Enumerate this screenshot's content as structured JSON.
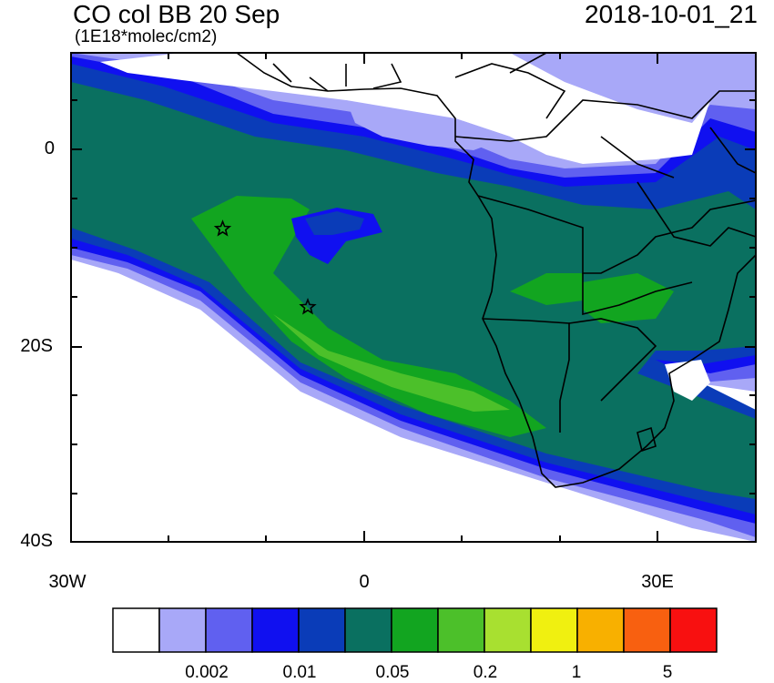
{
  "title": "CO col BB 20 Sep",
  "units": "(1E18*molec/cm2)",
  "timestamp": "2018-10-01_21",
  "axes": {
    "lat_labels": [
      "0",
      "20S",
      "40S"
    ],
    "lon_labels": [
      "30W",
      "0",
      "30E"
    ]
  },
  "colorbar": {
    "colors": [
      "#ffffff",
      "#a8a8f8",
      "#6060f0",
      "#1010f0",
      "#0a3cb8",
      "#0a7060",
      "#12a520",
      "#4cc02a",
      "#a8e030",
      "#f0f010",
      "#f8b000",
      "#f86010",
      "#f81010"
    ],
    "labels": [
      "0.002",
      "0.01",
      "0.05",
      "0.2",
      "1",
      "5"
    ]
  },
  "markers": [
    {
      "name": "star",
      "lon": -14.5,
      "lat": -8
    },
    {
      "name": "star",
      "lon": -5.8,
      "lat": -16
    }
  ]
}
